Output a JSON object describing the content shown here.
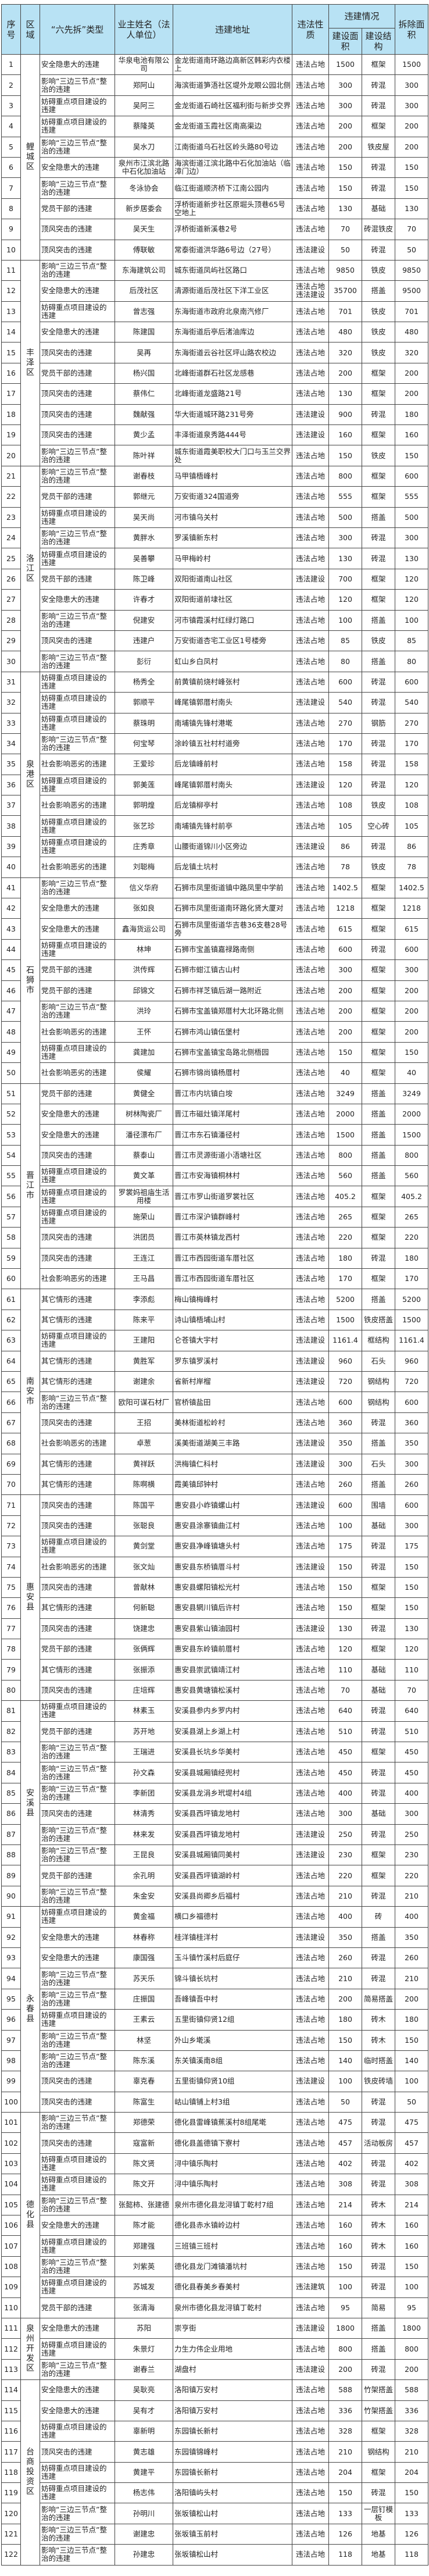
{
  "header": {
    "no": "序号",
    "region": "区域",
    "type": "“六先拆”类型",
    "owner": "业主姓名（法人单位）",
    "address": "违建地址",
    "nature": "违法性质",
    "situation": "违建情况",
    "area": "建设面积",
    "structure": "建设结构",
    "demolish": "拆除面积"
  },
  "colors": {
    "header_bg": "#b8e2f4",
    "border": "#444444"
  },
  "regions": [
    {
      "name": "鲤城区",
      "from": 1,
      "to": 10
    },
    {
      "name": "丰泽区",
      "from": 11,
      "to": 20
    },
    {
      "name": "洛江区",
      "from": 21,
      "to": 30
    },
    {
      "name": "泉港区",
      "from": 31,
      "to": 40
    },
    {
      "name": "石狮市",
      "from": 41,
      "to": 50
    },
    {
      "name": "晋江市",
      "from": 51,
      "to": 60
    },
    {
      "name": "南安市",
      "from": 61,
      "to": 70
    },
    {
      "name": "惠安县",
      "from": 71,
      "to": 80
    },
    {
      "name": "安溪县",
      "from": 81,
      "to": 90
    },
    {
      "name": "永春县",
      "from": 91,
      "to": 100
    },
    {
      "name": "德化县",
      "from": 101,
      "to": 110
    },
    {
      "name": "泉州开发区",
      "from": 111,
      "to": 113
    },
    {
      "name": "台商投资区",
      "from": 114,
      "to": 122
    }
  ],
  "rows": [
    [
      "1",
      "安全隐患大的违建",
      "华泉电池有限公司",
      "金龙街道南环路边高新区韩彩内衣楼上",
      "违法占地",
      "1500",
      "框架",
      "1500"
    ],
    [
      "2",
      "影响“三边三节点”整治的违建",
      "郑阿山",
      "海滨街道笋浯社区堤外龙眼公园北侧",
      "违法占地",
      "300",
      "砖混",
      "300"
    ],
    [
      "3",
      "妨碍重点项目建设的违建",
      "吴阿三",
      "金龙街道石崎社区福利街与新步交界",
      "违法占地",
      "300",
      "砖混",
      "300"
    ],
    [
      "4",
      "妨碍重点项目建设的违建",
      "蔡隆英",
      "金龙街道玉霞社区南高渠边",
      "违法占地",
      "200",
      "框架",
      "200"
    ],
    [
      "5",
      "影响“三边三节点”整治的违建",
      "吴水刀",
      "江南街道乌石社区岭头路80号边",
      "违法占地",
      "200",
      "铁皮屋",
      "200"
    ],
    [
      "6",
      "安全隐患大的违建",
      "泉州市江滨北路中石化加油站",
      "海滨街道江滨北路中石化加油站（临漳门边）",
      "违法占地",
      "150",
      "砖混",
      "150"
    ],
    [
      "7",
      "影响“三边三节点”整治的违建",
      "冬泳协会",
      "临江街道顺济桥下江南公园内",
      "违法占地",
      "150",
      "砖混",
      "150"
    ],
    [
      "8",
      "党员干部的违建",
      "新步居委会",
      "浮桥街道新步社区原堀头顶巷65号空地上",
      "违法占地",
      "130",
      "基础",
      "130"
    ],
    [
      "9",
      "顶风突击的违建",
      "吴天生",
      "浮桥街道新溪巷2号",
      "违法占地",
      "70",
      "砖混铁皮",
      "70"
    ],
    [
      "10",
      "顶风突击的违建",
      "傅联敏",
      "常泰街道洪华路6号边（27号）",
      "违法建设",
      "50",
      "砖混",
      "50"
    ],
    [
      "11",
      "影响“三边三节点”整治的违建",
      "东海建筑公司",
      "城东街道凤屿社区路口",
      "违法占地",
      "9850",
      "铁皮",
      "9850"
    ],
    [
      "12",
      "安全隐患大的违建",
      "后茂社区",
      "清源街道后茂社区下洋工业区",
      "违法占地 违法建设",
      "35700",
      "搭盖",
      "9500"
    ],
    [
      "13",
      "妨碍重点项目建设的违建",
      "曾志强",
      "东海街道市政府北泉南汽修厂",
      "违法占地",
      "701",
      "铁皮",
      "701"
    ],
    [
      "14",
      "安全隐患大的违建",
      "陈建国",
      "东海街道后亭后渚油库边",
      "违法占地",
      "480",
      "铁皮",
      "480"
    ],
    [
      "15",
      "顶风突击的违建",
      "吴再",
      "东海街道云谷社区坪山路农校边",
      "违法占地",
      "320",
      "铁皮",
      "320"
    ],
    [
      "16",
      "党员干部的违建",
      "杨兴国",
      "北峰街道群石社区龙感巷",
      "违法占地",
      "200",
      "框架",
      "200"
    ],
    [
      "17",
      "顶风突击的违建",
      "蔡伟仁",
      "北峰街道龙盛路21号",
      "违法占地",
      "130",
      "框架",
      "200"
    ],
    [
      "18",
      "顶风突击的违建",
      "魏献强",
      "华大街道城环路231号旁",
      "违法建设",
      "900",
      "砖混",
      "180"
    ],
    [
      "19",
      "顶风突击的违建",
      "黄少孟",
      "丰泽街道泉秀路444号",
      "违法建设",
      "160",
      "框架",
      "160"
    ],
    [
      "20",
      "影响“三边三节点”整治的违建",
      "陈叶祥",
      "城东街道霞美职校大门口与玉兰交界处",
      "违法占地",
      "150",
      "铁皮",
      "150"
    ],
    [
      "21",
      "影响“三边三节点”整治的违建",
      "谢春枝",
      "马甲镇梧峰村",
      "违法占地",
      "800",
      "框架",
      "600"
    ],
    [
      "22",
      "党员干部的违建",
      "郭继元",
      "万安街道324国道旁",
      "违法占地",
      "555",
      "框架",
      "555"
    ],
    [
      "23",
      "妨碍重点项目建设的违建",
      "吴天尚",
      "河市镇乌关村",
      "违法占地",
      "500",
      "搭盖",
      "500"
    ],
    [
      "24",
      "影响“三边三节点”整治的违建",
      "黄胖水",
      "罗溪镇新东村",
      "违法占地",
      "300",
      "砖混",
      "300"
    ],
    [
      "25",
      "妨碍重点项目建设的违建",
      "吴善攀",
      "马甲梅岭村",
      "违法占地",
      "130",
      "砖混",
      "130"
    ],
    [
      "26",
      "党员干部的违建",
      "陈卫峰",
      "双阳街道南山社区",
      "违法建设",
      "700",
      "框架",
      "120"
    ],
    [
      "27",
      "安全隐患大的违建",
      "许春才",
      "双阳街道前埭社区",
      "违法占地",
      "120",
      "框架",
      "120"
    ],
    [
      "28",
      "影响“三边三节点”整治的违建",
      "倪建安",
      "河市镇霞溪村红绿灯路口",
      "违法占地",
      "100",
      "搭盖",
      "100"
    ],
    [
      "29",
      "顶风突击的违建",
      "违建户",
      "万安街道杏宅工业区1号楼旁",
      "违法占地",
      "85",
      "铁皮",
      "85"
    ],
    [
      "30",
      "影响“三边三节点”整治的违建",
      "彭衍",
      "虹山乡白凤村",
      "违法占地",
      "80",
      "搭盖",
      "80"
    ],
    [
      "31",
      "妨碍重点项目建设的违建",
      "杨秀全",
      "前黄镇前烧村峰张村",
      "违法占地",
      "600",
      "砖混",
      "600"
    ],
    [
      "32",
      "妨碍重点项目建设的违建",
      "郭顺平",
      "峰尾镇郭厝村南头",
      "违法建设",
      "540",
      "砖混",
      "540"
    ],
    [
      "33",
      "妨碍重点项目建设的违建",
      "蔡珠明",
      "南埔镇先锋村港墘",
      "违法占地",
      "270",
      "钢筋",
      "270"
    ],
    [
      "34",
      "影响“三边三节点”整治的违建",
      "何宝琴",
      "涂岭镇五社村村道旁",
      "违法占地",
      "170",
      "砖混",
      "170"
    ],
    [
      "35",
      "社会影响恶劣的违建",
      "王爱珍",
      "后龙镇峰前村",
      "违法占地",
      "158",
      "砖混",
      "158"
    ],
    [
      "36",
      "妨碍重点项目建设的违建",
      "郭美莲",
      "峰尾镇郭厝村南头",
      "违法建设",
      "120",
      "砖混",
      "120"
    ],
    [
      "37",
      "社会影响恶劣的违建",
      "郭明煌",
      "后龙镇柳亭村",
      "违法占地",
      "108",
      "铁皮",
      "108"
    ],
    [
      "38",
      "妨碍重点项目建设的违建",
      "张艺珍",
      "南埔镇先锋村前亭",
      "违法占地",
      "105",
      "空心砖",
      "105"
    ],
    [
      "39",
      "妨碍重点项目建设的违建",
      "庄秀章",
      "山腰街道锦川小区旁边",
      "违法建设",
      "86",
      "砖混",
      "86"
    ],
    [
      "40",
      "社会影响恶劣的违建",
      "刘聪梅",
      "后龙镇土坑村",
      "违法占地",
      "78",
      "铁皮",
      "78"
    ],
    [
      "41",
      "影响“三边三节点”整治的违建",
      "信义华府",
      "石狮市凤里街道镇中路凤里中学前",
      "违法占地",
      "1402.5",
      "框架",
      "1402.5"
    ],
    [
      "42",
      "安全隐患大的违建",
      "张如良",
      "石狮市凤里街道南环路化贤大厦对",
      "违法占地",
      "1218",
      "框架",
      "1218"
    ],
    [
      "43",
      "安全隐患大的违建",
      "鑫海货运公司",
      "石狮市凤里街道华吉巷36支巷28号旁",
      "违法占地",
      "615",
      "框架",
      "615"
    ],
    [
      "44",
      "妨碍重点项目建设的违建",
      "林坤",
      "石狮市宝盖镇嘉禄路南侧",
      "违法占地",
      "600",
      "砖混",
      "600"
    ],
    [
      "45",
      "党员干部的违建",
      "洪传辉",
      "石狮市蚶江镇古山村",
      "违法占地",
      "300",
      "框架",
      "300"
    ],
    [
      "46",
      "党员干部的违建",
      "邱锦文",
      "石狮市祥芝镇后湖一路附近",
      "违法占地",
      "200",
      "框架",
      "200"
    ],
    [
      "47",
      "影响“三边三节点”整治的违建",
      "洪玲",
      "石狮市宝盖镇郑厝村大北环路北侧",
      "违法占地",
      "200",
      "框架",
      "200"
    ],
    [
      "48",
      "社会影响恶劣的违建",
      "王怀",
      "石狮市鸿山镇伍堡村",
      "违法占地",
      "200",
      "框架",
      "200"
    ],
    [
      "49",
      "妨碍重点项目建设的违建",
      "龚建加",
      "石狮市宝盖镇宝岛路北侧梧园",
      "违法占地",
      "150",
      "框架",
      "150"
    ],
    [
      "50",
      "社会影响恶劣的违建",
      "侯耀",
      "石狮市锦尚镇杨厝村",
      "违法占地",
      "40",
      "框架",
      "40"
    ],
    [
      "51",
      "党员干部的违建",
      "黄健全",
      "晋江市内坑镇白垵",
      "违法占地",
      "3249",
      "搭盖",
      "3249"
    ],
    [
      "52",
      "安全隐患大的违建",
      "树林陶瓷厂",
      "晋江市磁灶镇洋尾村",
      "违法占地",
      "2000",
      "搭盖",
      "2000"
    ],
    [
      "53",
      "安全隐患大的违建",
      "潘径漂布厂",
      "晋江市东石镇潘径村",
      "违法占地",
      "1500",
      "搭盖",
      "1500"
    ],
    [
      "54",
      "顶风突击的违建",
      "蔡泰山",
      "晋江市灵源街道小浯塘社区",
      "违法占地",
      "800",
      "搭盖",
      "800"
    ],
    [
      "55",
      "妨碍重点项目建设的违建",
      "黄文革",
      "晋江市安海镇桐林村",
      "违法占地",
      "560",
      "搭盖",
      "560"
    ],
    [
      "56",
      "妨碍重点项目建设的违建",
      "罗裳妈祖庙生活用楼",
      "晋江市罗山街道罗裳社区",
      "违法占地",
      "405.2",
      "框架",
      "405.2"
    ],
    [
      "57",
      "妨碍重点项目建设的违建",
      "施荣山",
      "晋江市深沪镇群峰村",
      "违法占地",
      "265",
      "框架",
      "265"
    ],
    [
      "58",
      "顶风突击的违建",
      "洪团员",
      "晋江市英林镇龙西村",
      "违法占地",
      "220",
      "框架",
      "220"
    ],
    [
      "59",
      "顶风突击的违建",
      "王连江",
      "晋江市西园街道车厝社区",
      "违法占地",
      "180",
      "砖混",
      "180"
    ],
    [
      "60",
      "社会影响恶劣的违建",
      "王马昌",
      "晋江市西园街道车厝社区",
      "违法占地",
      "170",
      "框架",
      "170"
    ],
    [
      "61",
      "其它情形的违建",
      "李添彪",
      "梅山镇梅峰村",
      "违法占地",
      "5200",
      "搭盖",
      "5200"
    ],
    [
      "62",
      "其它情形的违建",
      "陈来平",
      "诗山镇梧埔山村",
      "违法占地",
      "1500",
      "铁皮搭盖",
      "1500"
    ],
    [
      "63",
      "妨碍重点项目建设的违建",
      "王建阳",
      "仑苍镇大宇村",
      "违法建设",
      "1161.4",
      "框结构",
      "1161.4"
    ],
    [
      "64",
      "其它情形的违建",
      "黄胜军",
      "罗东镇罗溪村",
      "违法建设",
      "960",
      "石头",
      "960"
    ],
    [
      "65",
      "其它情形的违建",
      "谢建余",
      "省新村岸榴",
      "违法建设",
      "720",
      "钢结构",
      "720"
    ],
    [
      "66",
      "影响“三边三节点”整治的违建",
      "欧阳可谋石材厂",
      "官桥镇盐田",
      "违法占地",
      "600",
      "钢结构",
      "600"
    ],
    [
      "67",
      "顶风突击的违建",
      "王招",
      "美林街道松岭村",
      "违法占地",
      "360",
      "砖混",
      "360"
    ],
    [
      "68",
      "社会影响恶劣的违建",
      "卓葱",
      "溪美街道湖美三丰路",
      "违法建设",
      "350",
      "搭盖",
      "350"
    ],
    [
      "69",
      "其它情形的违建",
      "黄祥跃",
      "洪梅镇仁科村",
      "违法建设",
      "300",
      "石头",
      "300"
    ],
    [
      "70",
      "其它情形的违建",
      "陈啊横",
      "霞美镇邱钟村",
      "违法占地",
      "260",
      "搭盖",
      "260"
    ],
    [
      "71",
      "顶风突击的违建",
      "陈国平",
      "惠安县小岞镇螺山村",
      "违法建设",
      "600",
      "围墙",
      "600"
    ],
    [
      "72",
      "顶风突击的违建",
      "张聪良",
      "惠安县涂寨镇曲江村",
      "违法占地",
      "100",
      "基础",
      "300"
    ],
    [
      "73",
      "妨碍重点项目建设的违建",
      "黄剑堂",
      "惠安县净峰镇塘头村",
      "违法占地",
      "175",
      "砖混",
      "175"
    ],
    [
      "74",
      "社会影响恶劣的违建",
      "张文灿",
      "惠安县东桥镇厝斗村",
      "违法建设",
      "150",
      "砖混",
      "150"
    ],
    [
      "75",
      "顶风突击的违建",
      "曾献林",
      "惠安县螺阳镇松光村",
      "违法占地",
      "150",
      "框架",
      "150"
    ],
    [
      "76",
      "其它情形的违建",
      "何新聪",
      "惠安县辋川镇后许村",
      "违法占地",
      "150",
      "框架",
      "150"
    ],
    [
      "77",
      "顶风突击的违建",
      "饶建忠",
      "惠安县紫山镇油园村",
      "违法建设",
      "130",
      "砖混",
      "130"
    ],
    [
      "78",
      "党员干部的违建",
      "张俩辉",
      "惠安县东岭镇前厝村",
      "违法占地",
      "120",
      "框架",
      "120"
    ],
    [
      "79",
      "其它情形的违建",
      "张振添",
      "惠安县崇武镇靖江村",
      "违法占地",
      "110",
      "基础",
      "110"
    ],
    [
      "80",
      "顶风突击的违建",
      "庄培辉",
      "惠安县黄塘镇松溪村",
      "违法占地",
      "70",
      "基础",
      "70"
    ],
    [
      "81",
      "妨碍重点项目建设的违建",
      "林素玉",
      "安溪县参内乡罗内村",
      "违法占地",
      "640",
      "砖混",
      "640"
    ],
    [
      "82",
      "党员干部的违建",
      "苏开地",
      "安溪县湖上乡湖上村",
      "违法占地",
      "510",
      "砖混",
      "510"
    ],
    [
      "83",
      "影响“三边三节点”整治的违建",
      "王瑞进",
      "安溪县长坑乡华美村",
      "违法占地",
      "450",
      "框架",
      "450"
    ],
    [
      "84",
      "影响“三边三节点”整治的违建",
      "孙文森",
      "安溪县城厢镇经兜村",
      "违法占地",
      "450",
      "砖混",
      "450"
    ],
    [
      "85",
      "影响“三边三节点”整治的违建",
      "李新团",
      "安溪县龙涓乡玳堤村4组",
      "违法占地",
      "400",
      "砖混",
      "400"
    ],
    [
      "86",
      "顶风突击的违建",
      "林清秀",
      "安溪县西坪镇龙地村",
      "违法占地",
      "300",
      "基础",
      "300"
    ],
    [
      "87",
      "影响“三边三节点”整治的违建",
      "林来发",
      "安溪县西坪镇龙地村",
      "违法建设",
      "250",
      "砖混",
      "250"
    ],
    [
      "88",
      "影响“三边三节点”整治的违建",
      "王昆良",
      "安溪县城厢镇同美村",
      "违法建设",
      "230",
      "框架",
      "230"
    ],
    [
      "89",
      "党员干部的违建",
      "余孔明",
      "安溪县西坪镇湖岭村",
      "违法占地",
      "220",
      "框架",
      "220"
    ],
    [
      "90",
      "影响“三边三节点”整治的违建",
      "朱金安",
      "安溪县尚卿乡后福村",
      "违法占地",
      "210",
      "砖混",
      "210"
    ],
    [
      "91",
      "妨碍重点项目建设的违建",
      "黄金福",
      "横口乡福德村",
      "违法占地",
      "400",
      "砖",
      "400"
    ],
    [
      "92",
      "安全隐患大的违建",
      "林春称",
      "桂洋镇桂洋村",
      "违法建设",
      "350",
      "搭盖",
      "350"
    ],
    [
      "93",
      "安全隐患大的违建",
      "康国强",
      "玉斗镇竹溪村后庭仔",
      "违法占地",
      "260",
      "砖混",
      "260"
    ],
    [
      "94",
      "影响“三边三节点”整治的违建",
      "苏天乐",
      "锦斗镇长坑村",
      "违法占地",
      "210",
      "砖混",
      "210"
    ],
    [
      "95",
      "影响“三边三节点”整治的违建",
      "庄振国",
      "吾峰镇吾中村",
      "违法占地",
      "200",
      "简易搭盖",
      "200"
    ],
    [
      "96",
      "妨碍重点项目建设的违建",
      "王素云",
      "五里街镇仰贤12组",
      "违法占地",
      "180",
      "砖木",
      "180"
    ],
    [
      "97",
      "影响“三边三节点”整治的违建",
      "林坚",
      "外山乡墘溪",
      "违法占地",
      "150",
      "砖木",
      "150"
    ],
    [
      "98",
      "影响“三边三节点”整治的违建",
      "陈东溪",
      "东关镇溪南8组",
      "违法占地",
      "140",
      "临时搭盖",
      "140"
    ],
    [
      "99",
      "顶风突击的违建",
      "辜克春",
      "五里街镇仰贤10组",
      "违法建设",
      "100",
      "铁皮砖墙",
      "100"
    ],
    [
      "100",
      "顶风突击的违建",
      "陈富生",
      "岵山镇铺上村3组",
      "违法占地",
      "50",
      "砖混",
      "50"
    ],
    [
      "101",
      "影响“三边三节点”整治的违建",
      "郑德荣",
      "德化县雷峰镇蕉溪村8组尾墘",
      "违法占地",
      "475",
      "砖混",
      "475"
    ],
    [
      "102",
      "顶风突击的违建",
      "寇富新",
      "德化县盖德镇下寮村",
      "违法占地",
      "457",
      "活动板房",
      "457"
    ],
    [
      "103",
      "妨碍重点项目建设的违建",
      "陈文贤",
      "浔中镇乐陶村",
      "违法占地",
      "402",
      "砖混",
      "402"
    ],
    [
      "104",
      "妨碍重点项目建设的违建",
      "陈文开",
      "浔中镇乐陶村",
      "违法占地",
      "308",
      "砖混",
      "308"
    ],
    [
      "105",
      "影响“三边三节点”整治的违建",
      "张懿柿、张建德",
      "泉州市德化县龙浔镇丁乾村7组",
      "违法占地",
      "214",
      "砖木",
      "214"
    ],
    [
      "106",
      "安全隐患大的违建",
      "陈才能",
      "德化县赤水镇岭边村",
      "违法占地",
      "160",
      "砖木",
      "160"
    ],
    [
      "107",
      "妨碍重点项目建设的违建",
      "郑建强",
      "三班镇三班村",
      "违法占地",
      "160",
      "砖木",
      "160"
    ],
    [
      "108",
      "影响“三边三节点”整治的违建",
      "刘紫英",
      "德化县龙门滩镇潘坑村",
      "违法占地",
      "150",
      "砖混",
      "150"
    ],
    [
      "109",
      "妨碍重点项目建设的违建",
      "苏城发",
      "德化县春美乡春美村",
      "违法建筑",
      "100",
      "砖混",
      "100"
    ],
    [
      "110",
      "党员干部的违建",
      "张清海",
      "泉州市德化县龙浔镇丁乾村",
      "违法占地",
      "95",
      "简易",
      "95"
    ],
    [
      "111",
      "安全隐患大的违建",
      "苏阳",
      "崇亨街",
      "违法建设",
      "1800",
      "搭盖",
      "1800"
    ],
    [
      "112",
      "妨碍重点项目建设的违建",
      "朱景灯",
      "力生力伟企业用地",
      "违法占地",
      "800",
      "搭盖",
      "800"
    ],
    [
      "113",
      "影响“三边三节点”整治的违建",
      "谢春兰",
      "湖盘村",
      "违法建设",
      "200",
      "砖混",
      "200"
    ],
    [
      "114",
      "安全隐患大的违建",
      "吴耿亮",
      "洛阳镇万安村",
      "违法占地",
      "588",
      "竹架搭盖",
      "588"
    ],
    [
      "115",
      "安全隐患大的违建",
      "吴有才",
      "洛阳镇万安村",
      "违法占地",
      "336",
      "竹架搭盖",
      "336"
    ],
    [
      "116",
      "妨碍重点项目建设的违建",
      "辜新明",
      "东园镇长新村",
      "违法占地",
      "328",
      "框架",
      "328"
    ],
    [
      "117",
      "顶风突击的违建",
      "黄志雄",
      "东园镇锦峰村",
      "违法占地",
      "210",
      "钢结构",
      "210"
    ],
    [
      "118",
      "妨碍重点项目建设的违建",
      "黄建平",
      "东园镇长新村",
      "违法占地",
      "204",
      "框架",
      "204"
    ],
    [
      "119",
      "妨碍重点项目建设的违建",
      "杨志伟",
      "洛阳镇屿头村",
      "违法占地",
      "150",
      "砖混",
      "150"
    ],
    [
      "120",
      "影响“三边三节点”整治的违建",
      "孙明川",
      "张坂镇松山村",
      "违法占地",
      "133",
      "一层钉模板",
      "133"
    ],
    [
      "121",
      "影响“三边三节点”整治的违建",
      "谢建忠",
      "张坂镇玉前村",
      "违法占地",
      "126",
      "地基",
      "126"
    ],
    [
      "122",
      "影响“三边三节点”整治的违建",
      "孙建忠",
      "张坂镇松山村",
      "违法占地",
      "118",
      "地基",
      "118"
    ]
  ]
}
